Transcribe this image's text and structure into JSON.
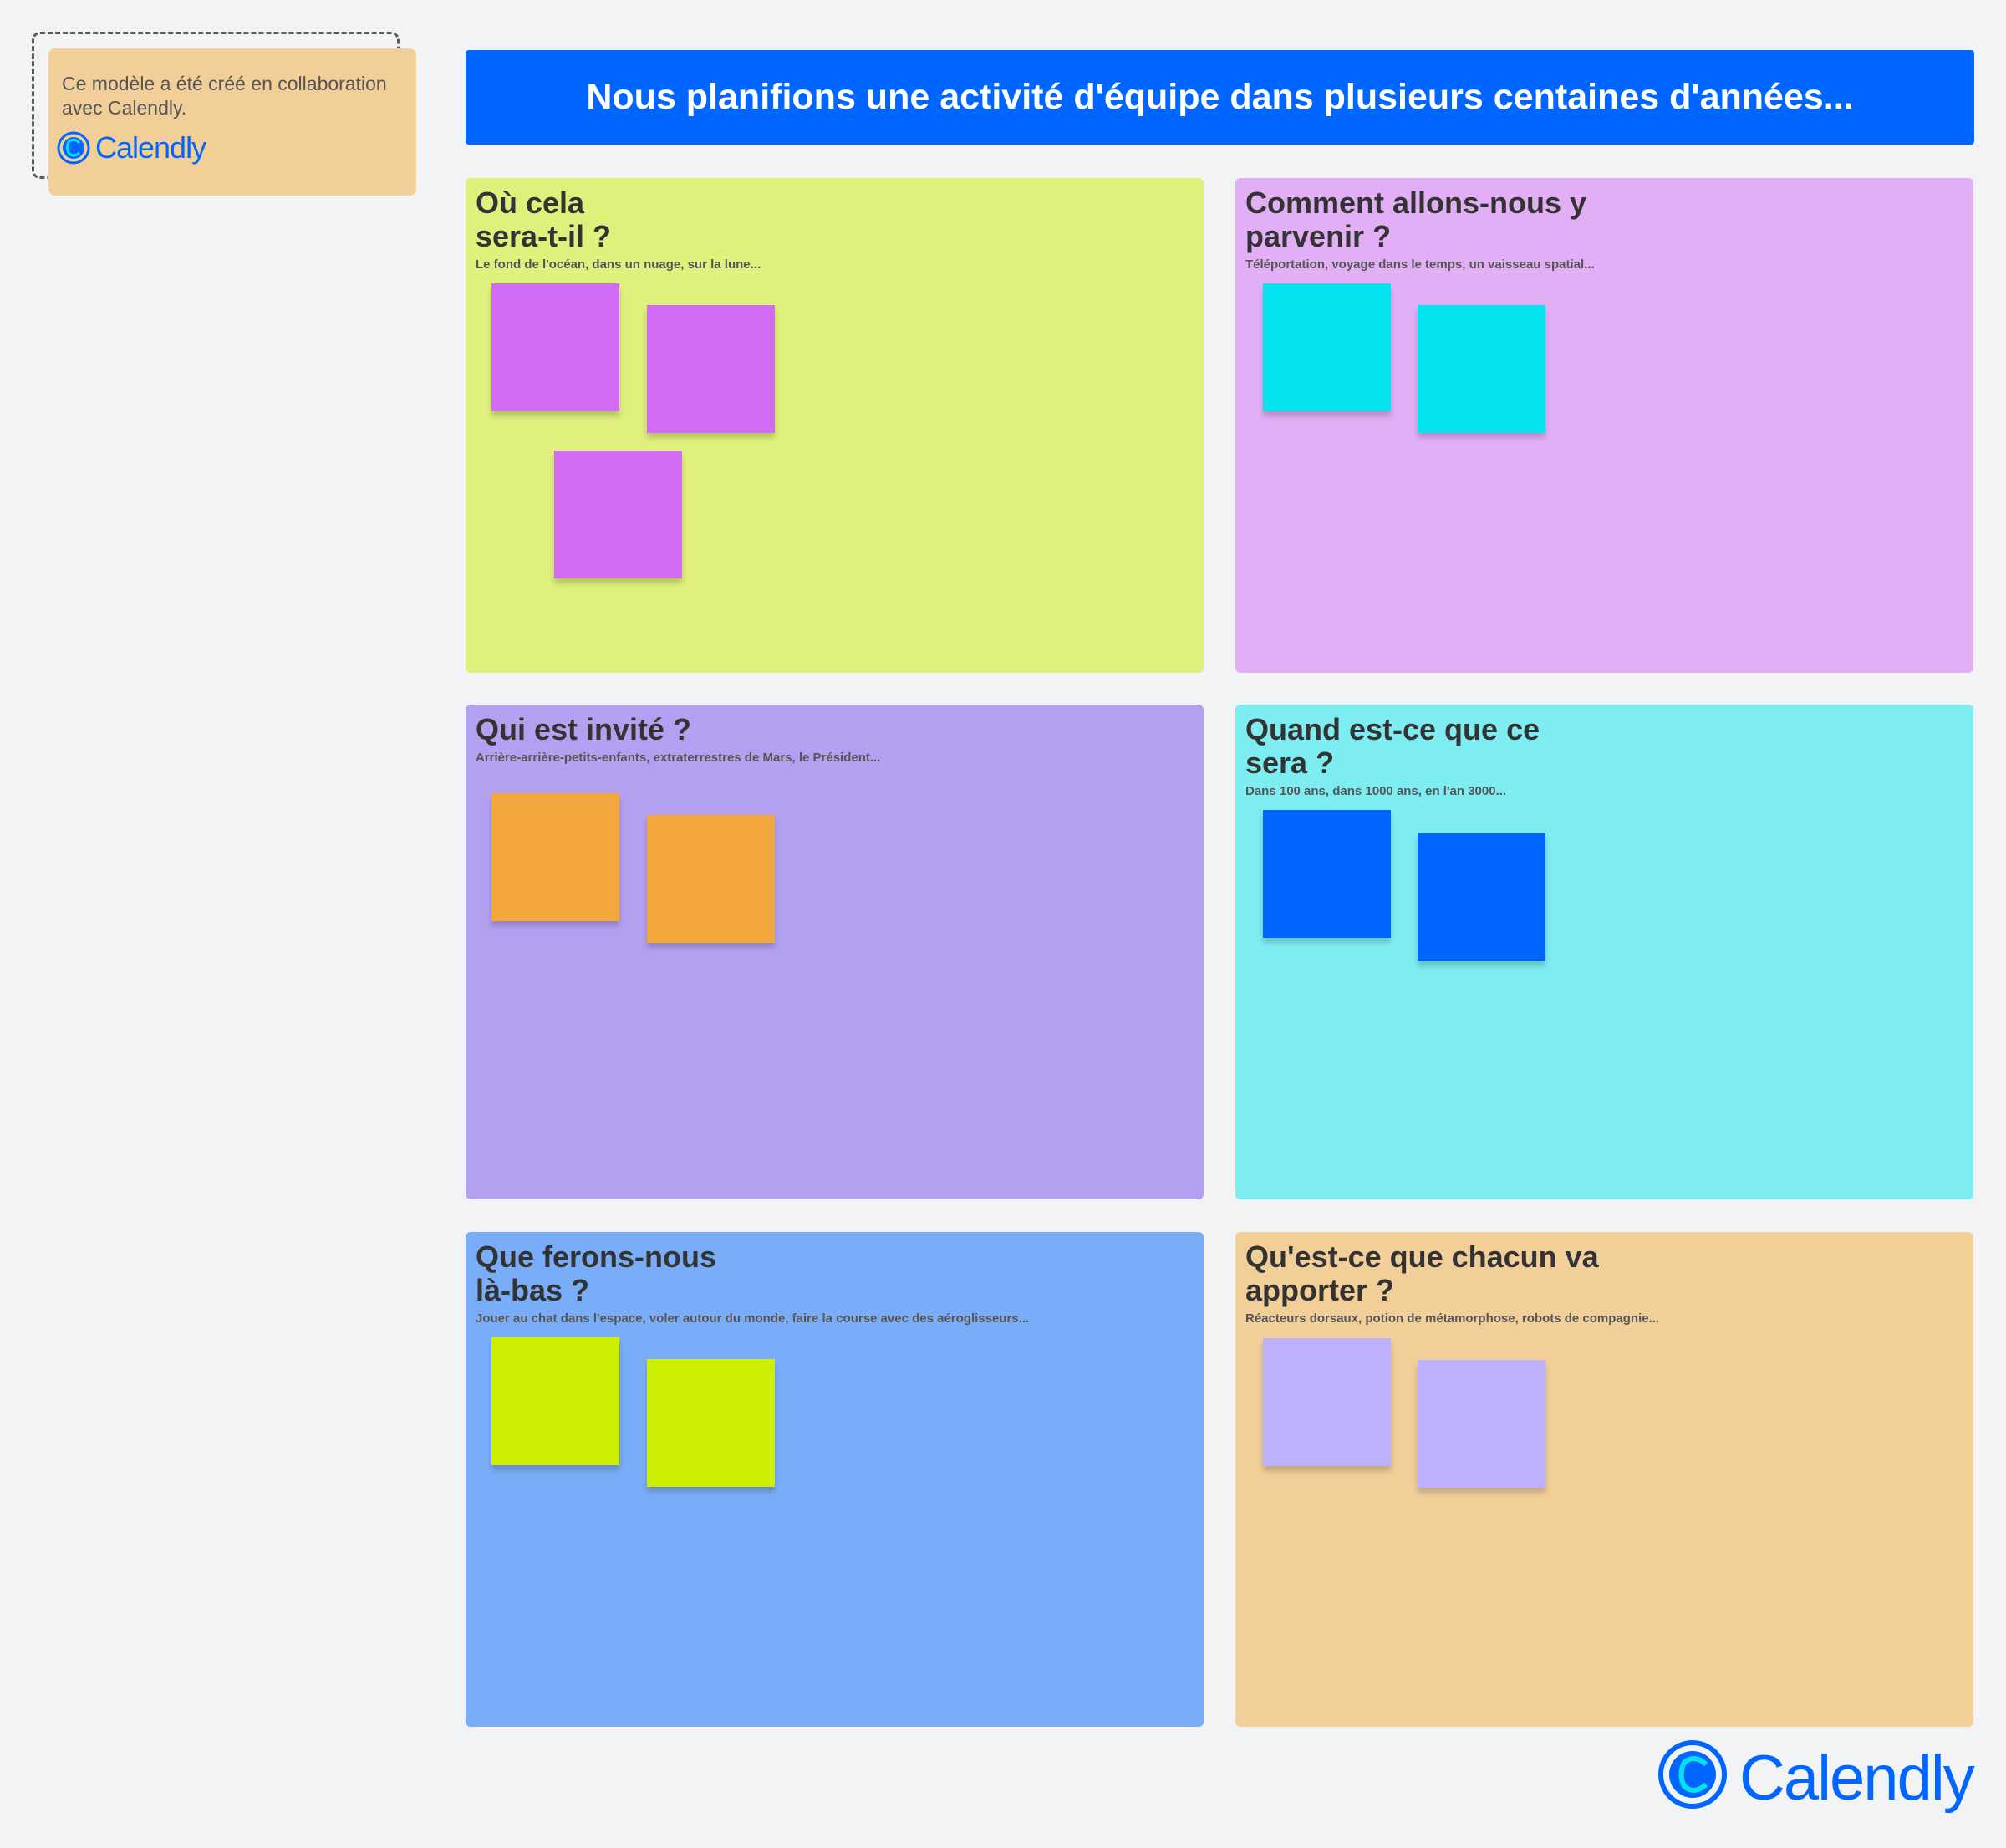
{
  "note": {
    "text": "Ce modèle a été créé en collaboration avec Calendly.",
    "logo": "Calendly"
  },
  "header": {
    "title": "Nous planifions une activité d'équipe dans plusieurs centaines d'années..."
  },
  "colors": {
    "background": "#f2f3f5",
    "brand": "#0066ff",
    "brand_accent": "#05e3ef"
  },
  "panels": [
    {
      "title_lines": [
        "Où cela",
        "sera-t-il ?"
      ],
      "subtitle": "Le fond de l'océan, dans un nuage, sur la lune...",
      "bg": "#e0f07c",
      "sticky_color": "#d36cf5",
      "sticky_count": 3
    },
    {
      "title_lines": [
        "Comment allons-nous y",
        "parvenir ?"
      ],
      "subtitle": "Téléportation, voyage dans le temps, un vaisseau spatial...",
      "bg": "#e2aef5",
      "sticky_color": "#05e3ef",
      "sticky_count": 2
    },
    {
      "title_lines": [
        "Qui est invité ?"
      ],
      "subtitle": "Arrière-arrière-petits-enfants, extraterrestres de Mars, le Président...",
      "bg": "#b4a0f0",
      "sticky_color": "#f2a73c",
      "sticky_count": 2
    },
    {
      "title_lines": [
        "Quand est-ce que ce",
        "sera ?"
      ],
      "subtitle": "Dans 100 ans, dans 1000 ans, en l'an 3000...",
      "bg": "#7eedf1",
      "sticky_color": "#0066ff",
      "sticky_count": 2
    },
    {
      "title_lines": [
        "Que ferons-nous",
        "là-bas ?"
      ],
      "subtitle": "Jouer au chat dans l'espace, voler autour du monde, faire la course avec des aéroglisseurs...",
      "bg": "#7aadf8",
      "sticky_color": "#ccef03",
      "sticky_count": 2
    },
    {
      "title_lines": [
        "Qu'est-ce que chacun va",
        "apporter ?"
      ],
      "subtitle": "Réacteurs dorsaux, potion de métamorphose, robots de compagnie...",
      "bg": "#f2ce98",
      "sticky_color": "#bdb0fc",
      "sticky_count": 2
    }
  ],
  "footer_logo": "Calendly"
}
